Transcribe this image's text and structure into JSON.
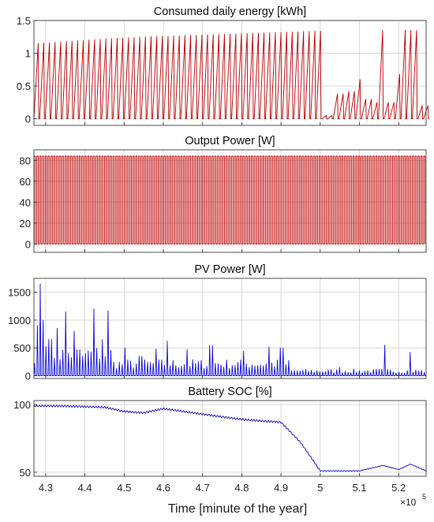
{
  "figure": {
    "xlabel": "Time [minute of the year]",
    "x_exponent_label": "×10",
    "x_exponent_power": "5",
    "x_ticks": [
      4.3,
      4.4,
      4.5,
      4.6,
      4.7,
      4.8,
      4.9,
      5.0,
      5.1,
      5.2
    ],
    "x_tick_labels": [
      "4.3",
      "4.4",
      "4.5",
      "4.6",
      "4.7",
      "4.8",
      "4.9",
      "5",
      "5.1",
      "5.2"
    ],
    "xlim": [
      4.27,
      5.27
    ],
    "colors": {
      "red": "#c00000",
      "blue": "#1010d8",
      "grid": "#d2d2d2",
      "axis": "#262626"
    }
  },
  "chart_data": [
    {
      "type": "line",
      "title": "Consumed daily energy [kWh]",
      "ylim": [
        -0.1,
        1.5
      ],
      "yticks": [
        0,
        0.5,
        1,
        1.5
      ],
      "ytick_labels": [
        "0",
        "0.5",
        "1",
        "1.5"
      ],
      "grid": true,
      "color": "#c00000",
      "pattern": "daily ramp from 0 to a peak then reset; peaks rise from about 1.15 at 4.27 to 1.35 at 5.0, then mostly 0.05–0.6 with spikes to 1.35 near 5.15 and 5.21",
      "peaks": [
        {
          "x": 4.28,
          "y": 1.15
        },
        {
          "x": 4.35,
          "y": 1.18
        },
        {
          "x": 4.45,
          "y": 1.22
        },
        {
          "x": 4.55,
          "y": 1.25
        },
        {
          "x": 4.65,
          "y": 1.27
        },
        {
          "x": 4.75,
          "y": 1.29
        },
        {
          "x": 4.85,
          "y": 1.31
        },
        {
          "x": 4.95,
          "y": 1.33
        },
        {
          "x": 5.0,
          "y": 1.34
        },
        {
          "x": 5.02,
          "y": 0.05
        },
        {
          "x": 5.04,
          "y": 0.38
        },
        {
          "x": 5.07,
          "y": 0.42
        },
        {
          "x": 5.09,
          "y": 0.6
        },
        {
          "x": 5.11,
          "y": 0.3
        },
        {
          "x": 5.13,
          "y": 0.25
        },
        {
          "x": 5.15,
          "y": 1.35
        },
        {
          "x": 5.17,
          "y": 0.25
        },
        {
          "x": 5.19,
          "y": 0.68
        },
        {
          "x": 5.21,
          "y": 1.35
        },
        {
          "x": 5.22,
          "y": 1.35
        },
        {
          "x": 5.25,
          "y": 0.2
        }
      ]
    },
    {
      "type": "line",
      "title": "Output Power [W]",
      "ylim": [
        -8,
        90
      ],
      "yticks": [
        0,
        20,
        40,
        60,
        80
      ],
      "ytick_labels": [
        "0",
        "20",
        "40",
        "60",
        "80"
      ],
      "grid": true,
      "color": "#c00000",
      "pattern": "daily square pulses switching between 0 and about 84 W across the whole range",
      "on_level": 84,
      "off_level": 0
    },
    {
      "type": "line",
      "title": "PV Power [W]",
      "ylim": [
        -50,
        1750
      ],
      "yticks": [
        0,
        500,
        1000,
        1500
      ],
      "ytick_labels": [
        "0",
        "500",
        "1000",
        "1500"
      ],
      "grid": true,
      "color": "#1010d8",
      "pattern": "daily peaks; highest about 1650 near 4.28, frequent 700–1150 peaks until 4.46, 200–650 until 4.92, mostly under 200 after 4.95 with a 550 spike near 5.16",
      "daily_peaks": [
        {
          "x": 4.275,
          "y": 900
        },
        {
          "x": 4.283,
          "y": 1650
        },
        {
          "x": 4.29,
          "y": 1000
        },
        {
          "x": 4.31,
          "y": 650
        },
        {
          "x": 4.33,
          "y": 850
        },
        {
          "x": 4.35,
          "y": 1150
        },
        {
          "x": 4.37,
          "y": 800
        },
        {
          "x": 4.39,
          "y": 350
        },
        {
          "x": 4.42,
          "y": 1200
        },
        {
          "x": 4.44,
          "y": 650
        },
        {
          "x": 4.46,
          "y": 1170
        },
        {
          "x": 4.5,
          "y": 500
        },
        {
          "x": 4.54,
          "y": 350
        },
        {
          "x": 4.58,
          "y": 480
        },
        {
          "x": 4.61,
          "y": 620
        },
        {
          "x": 4.66,
          "y": 470
        },
        {
          "x": 4.72,
          "y": 540
        },
        {
          "x": 4.8,
          "y": 440
        },
        {
          "x": 4.87,
          "y": 520
        },
        {
          "x": 4.9,
          "y": 500
        },
        {
          "x": 5.05,
          "y": 150
        },
        {
          "x": 5.16,
          "y": 550
        },
        {
          "x": 5.23,
          "y": 420
        }
      ]
    },
    {
      "type": "line",
      "title": "Battery SOC [%]",
      "ylim": [
        47,
        103
      ],
      "yticks": [
        50,
        100
      ],
      "ytick_labels": [
        "50",
        "100"
      ],
      "grid": true,
      "color": "#1010d8",
      "pattern": "oscillating near 98–100 until about 4.5, dips to ~92, recovers to ~97 near 4.6, declines to ~87 by 4.9, falls steeply to ~51 at 5.0, stays ~50–52 with small bumps",
      "trend": [
        {
          "x": 4.27,
          "y": 99
        },
        {
          "x": 4.35,
          "y": 99
        },
        {
          "x": 4.45,
          "y": 98
        },
        {
          "x": 4.5,
          "y": 95
        },
        {
          "x": 4.55,
          "y": 94
        },
        {
          "x": 4.6,
          "y": 97
        },
        {
          "x": 4.7,
          "y": 93
        },
        {
          "x": 4.8,
          "y": 89
        },
        {
          "x": 4.9,
          "y": 87
        },
        {
          "x": 4.95,
          "y": 72
        },
        {
          "x": 5.0,
          "y": 51
        },
        {
          "x": 5.1,
          "y": 51
        },
        {
          "x": 5.16,
          "y": 55
        },
        {
          "x": 5.2,
          "y": 52
        },
        {
          "x": 5.23,
          "y": 56
        },
        {
          "x": 5.27,
          "y": 51
        }
      ]
    }
  ]
}
